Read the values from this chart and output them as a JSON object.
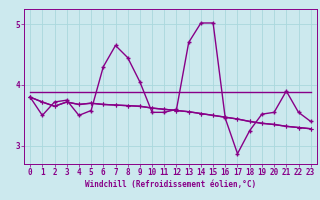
{
  "title": "",
  "xlabel": "Windchill (Refroidissement éolien,°C)",
  "ylabel": "",
  "xlim": [
    -0.5,
    23.5
  ],
  "ylim": [
    2.7,
    5.25
  ],
  "yticks": [
    3,
    4,
    5
  ],
  "xticks": [
    0,
    1,
    2,
    3,
    4,
    5,
    6,
    7,
    8,
    9,
    10,
    11,
    12,
    13,
    14,
    15,
    16,
    17,
    18,
    19,
    20,
    21,
    22,
    23
  ],
  "bg_color": "#cce9ee",
  "line_color": "#880088",
  "grid_color": "#aad8dd",
  "lines": [
    [
      3.8,
      3.5,
      3.72,
      3.75,
      3.5,
      3.58,
      4.3,
      4.65,
      4.45,
      4.05,
      3.55,
      3.55,
      3.6,
      4.7,
      5.02,
      5.02,
      3.45,
      2.87,
      3.25,
      3.52,
      3.55,
      3.9,
      3.55,
      3.4
    ],
    [
      3.88,
      3.88,
      3.88,
      3.88,
      3.88,
      3.88,
      3.88,
      3.88,
      3.88,
      3.88,
      3.88,
      3.88,
      3.88,
      3.88,
      3.88,
      3.88,
      3.88,
      3.88,
      3.88,
      3.88,
      3.88,
      3.88,
      3.88,
      3.88
    ],
    [
      3.8,
      3.72,
      3.65,
      3.72,
      3.68,
      3.7,
      3.68,
      3.67,
      3.66,
      3.65,
      3.62,
      3.6,
      3.58,
      3.56,
      3.53,
      3.5,
      3.47,
      3.44,
      3.4,
      3.37,
      3.35,
      3.32,
      3.3,
      3.28
    ],
    [
      3.8,
      3.72,
      3.65,
      3.72,
      3.68,
      3.7,
      3.68,
      3.67,
      3.66,
      3.65,
      3.62,
      3.6,
      3.58,
      3.56,
      3.53,
      3.5,
      3.47,
      3.44,
      3.4,
      3.37,
      3.35,
      3.32,
      3.3,
      3.28
    ]
  ],
  "tick_fontsize": 5.5,
  "xlabel_fontsize": 5.5,
  "linewidth": 1.0
}
